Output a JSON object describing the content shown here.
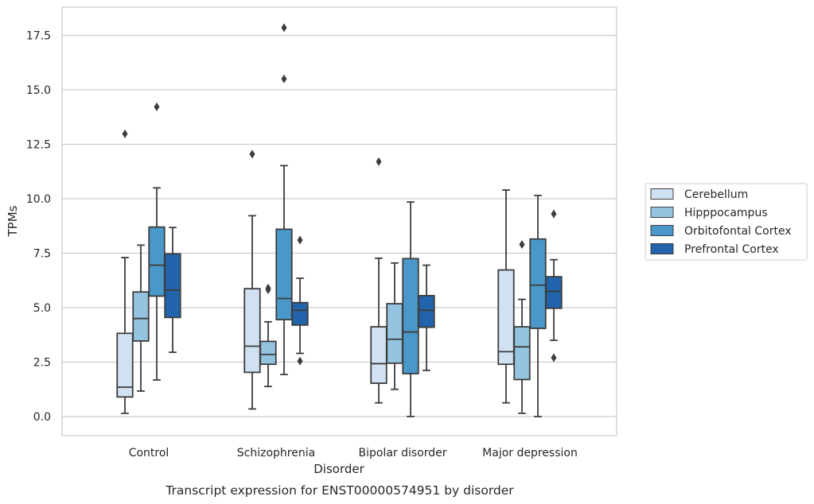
{
  "chart_data": {
    "type": "box",
    "title": "Transcript expression for ENST00000574951 by disorder",
    "xlabel": "Disorder",
    "ylabel": "TPMs",
    "ylim": [
      -0.85,
      18.75
    ],
    "yticks": [
      "0.0",
      "2.5",
      "5.0",
      "7.5",
      "10.0",
      "12.5",
      "15.0",
      "17.5"
    ],
    "ytick_values": [
      0,
      2.5,
      5,
      7.5,
      10,
      12.5,
      15,
      17.5
    ],
    "grid": "horizontal",
    "legend_placement": "outside-right",
    "categories": [
      "Control",
      "Schizophrenia",
      "Bipolar disorder",
      "Major depression"
    ],
    "series": [
      {
        "name": "Cerebellum",
        "color": "#d0e1f2",
        "boxes": [
          {
            "whislo": 0.15,
            "q1": 0.9,
            "med": 1.35,
            "q3": 3.82,
            "whishi": 7.3,
            "fliers": [
              12.98
            ]
          },
          {
            "whislo": 0.35,
            "q1": 2.03,
            "med": 3.23,
            "q3": 5.87,
            "whishi": 9.22,
            "fliers": [
              12.05
            ]
          },
          {
            "whislo": 0.63,
            "q1": 1.53,
            "med": 2.43,
            "q3": 4.12,
            "whishi": 7.27,
            "fliers": [
              11.7
            ]
          },
          {
            "whislo": 0.63,
            "q1": 2.4,
            "med": 2.98,
            "q3": 6.73,
            "whishi": 10.4,
            "fliers": []
          }
        ]
      },
      {
        "name": "Hipppocampus",
        "color": "#94c4df",
        "boxes": [
          {
            "whislo": 1.17,
            "q1": 3.47,
            "med": 4.5,
            "q3": 5.72,
            "whishi": 7.87,
            "fliers": []
          },
          {
            "whislo": 1.38,
            "q1": 2.4,
            "med": 2.85,
            "q3": 3.45,
            "whishi": 4.35,
            "fliers": [
              5.82,
              5.9
            ]
          },
          {
            "whislo": 1.25,
            "q1": 2.45,
            "med": 3.55,
            "q3": 5.18,
            "whishi": 7.05,
            "fliers": []
          },
          {
            "whislo": 0.15,
            "q1": 1.7,
            "med": 3.2,
            "q3": 4.12,
            "whishi": 5.38,
            "fliers": [
              7.9
            ]
          }
        ]
      },
      {
        "name": "Orbitofontal Cortex",
        "color": "#4a98c9",
        "boxes": [
          {
            "whislo": 1.68,
            "q1": 5.53,
            "med": 6.95,
            "q3": 8.7,
            "whishi": 10.5,
            "fliers": [
              14.22
            ]
          },
          {
            "whislo": 1.93,
            "q1": 4.45,
            "med": 5.42,
            "q3": 8.6,
            "whishi": 11.52,
            "fliers": [
              15.5,
              17.85
            ]
          },
          {
            "whislo": 0.0,
            "q1": 1.97,
            "med": 3.88,
            "q3": 7.25,
            "whishi": 9.85,
            "fliers": []
          },
          {
            "whislo": 0.0,
            "q1": 4.05,
            "med": 6.03,
            "q3": 8.15,
            "whishi": 10.15,
            "fliers": []
          }
        ]
      },
      {
        "name": "Prefrontal Cortex",
        "color": "#2164ab",
        "boxes": [
          {
            "whislo": 2.95,
            "q1": 4.55,
            "med": 5.8,
            "q3": 7.47,
            "whishi": 8.68,
            "fliers": []
          },
          {
            "whislo": 2.9,
            "q1": 4.2,
            "med": 4.88,
            "q3": 5.23,
            "whishi": 6.35,
            "fliers": [
              2.55,
              8.1
            ]
          },
          {
            "whislo": 2.12,
            "q1": 4.1,
            "med": 4.88,
            "q3": 5.55,
            "whishi": 6.95,
            "fliers": []
          },
          {
            "whislo": 3.5,
            "q1": 4.97,
            "med": 5.75,
            "q3": 6.42,
            "whishi": 7.2,
            "fliers": [
              2.7,
              9.3
            ]
          }
        ]
      }
    ]
  }
}
